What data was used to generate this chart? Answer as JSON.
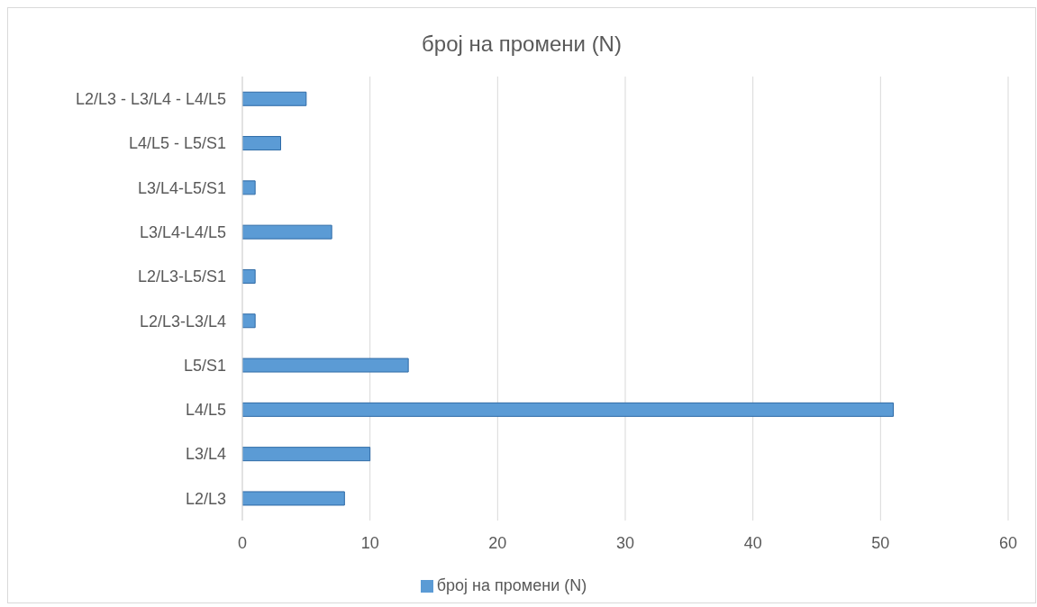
{
  "chart_data": {
    "type": "bar",
    "orientation": "horizontal",
    "title": "број на промени (N)",
    "categories": [
      "L2/L3 - L3/L4 - L4/L5",
      "L4/L5 - L5/S1",
      "L3/L4-L5/S1",
      "L3/L4-L4/L5",
      "L2/L3-L5/S1",
      "L2/L3-L3/L4",
      "L5/S1",
      "L4/L5",
      "L3/L4",
      "L2/L3"
    ],
    "series": [
      {
        "name": "број на промени (N)",
        "color": "#5b9bd5",
        "values": [
          5,
          3,
          1,
          7,
          1,
          1,
          13,
          51,
          10,
          8
        ]
      }
    ],
    "xlim": [
      0,
      60
    ],
    "xticks": [
      0,
      10,
      20,
      30,
      40,
      50,
      60
    ],
    "grid": "x",
    "legend": "bottom"
  }
}
